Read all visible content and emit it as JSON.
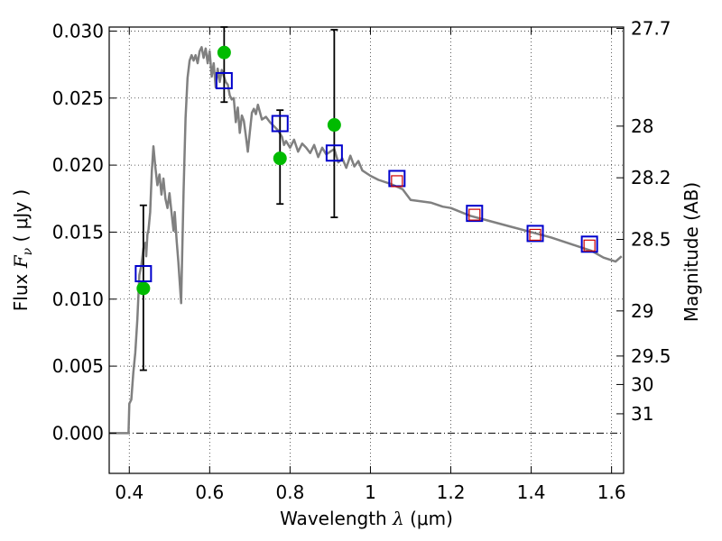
{
  "chart_data": {
    "type": "scatter",
    "xlabel": "Wavelength  λ (μm)",
    "ylabel": "Flux  F_ν  ( μJy )",
    "ylabel_parts": {
      "prefix": "Flux  ",
      "symbol": "F",
      "subscript": "ν",
      "units": "  ( μJy )"
    },
    "xlabel_parts": {
      "prefix": "Wavelength  ",
      "symbol": "λ",
      "units": " (μm)"
    },
    "right_ylabel": "Magnitude (AB)",
    "xlim": [
      0.35,
      1.63
    ],
    "ylim": [
      -0.003,
      0.0303
    ],
    "grid": true,
    "x_ticks": [
      {
        "value": 0.4,
        "label": "0.4"
      },
      {
        "value": 0.6,
        "label": "0.6"
      },
      {
        "value": 0.8,
        "label": "0.8"
      },
      {
        "value": 1.0,
        "label": "1"
      },
      {
        "value": 1.2,
        "label": "1.2"
      },
      {
        "value": 1.4,
        "label": "1.4"
      },
      {
        "value": 1.6,
        "label": "1.6"
      }
    ],
    "y_ticks": [
      {
        "value": 0.0,
        "label": "0.000"
      },
      {
        "value": 0.005,
        "label": "0.005"
      },
      {
        "value": 0.01,
        "label": "0.010"
      },
      {
        "value": 0.015,
        "label": "0.015"
      },
      {
        "value": 0.02,
        "label": "0.020"
      },
      {
        "value": 0.025,
        "label": "0.025"
      },
      {
        "value": 0.03,
        "label": "0.030"
      }
    ],
    "right_ticks": [
      {
        "mag": 27.7,
        "label": "27.7"
      },
      {
        "mag": 28.0,
        "label": "28"
      },
      {
        "mag": 28.2,
        "label": "28.2"
      },
      {
        "mag": 28.5,
        "label": "28.5"
      },
      {
        "mag": 29.0,
        "label": "29"
      },
      {
        "mag": 29.5,
        "label": "29.5"
      },
      {
        "mag": 30.0,
        "label": "30"
      },
      {
        "mag": 31.0,
        "label": "31"
      }
    ],
    "model_sed": {
      "color": "#808080",
      "points": [
        [
          0.35,
          0.0
        ],
        [
          0.39,
          0.0
        ],
        [
          0.398,
          0.0
        ],
        [
          0.4,
          0.0022
        ],
        [
          0.405,
          0.0025
        ],
        [
          0.41,
          0.0045
        ],
        [
          0.415,
          0.006
        ],
        [
          0.42,
          0.0085
        ],
        [
          0.425,
          0.0118
        ],
        [
          0.43,
          0.0125
        ],
        [
          0.435,
          0.0138
        ],
        [
          0.44,
          0.0142
        ],
        [
          0.442,
          0.0132
        ],
        [
          0.445,
          0.0148
        ],
        [
          0.448,
          0.0152
        ],
        [
          0.452,
          0.0165
        ],
        [
          0.456,
          0.0195
        ],
        [
          0.46,
          0.0214
        ],
        [
          0.465,
          0.0198
        ],
        [
          0.47,
          0.0185
        ],
        [
          0.475,
          0.0193
        ],
        [
          0.48,
          0.0178
        ],
        [
          0.485,
          0.019
        ],
        [
          0.49,
          0.0175
        ],
        [
          0.495,
          0.0168
        ],
        [
          0.5,
          0.0179
        ],
        [
          0.505,
          0.0165
        ],
        [
          0.51,
          0.0151
        ],
        [
          0.513,
          0.0165
        ],
        [
          0.518,
          0.0143
        ],
        [
          0.522,
          0.0128
        ],
        [
          0.526,
          0.011
        ],
        [
          0.529,
          0.0097
        ],
        [
          0.531,
          0.0125
        ],
        [
          0.535,
          0.018
        ],
        [
          0.54,
          0.0235
        ],
        [
          0.545,
          0.0265
        ],
        [
          0.55,
          0.0278
        ],
        [
          0.555,
          0.0282
        ],
        [
          0.56,
          0.0278
        ],
        [
          0.565,
          0.0282
        ],
        [
          0.57,
          0.0276
        ],
        [
          0.575,
          0.0285
        ],
        [
          0.58,
          0.0288
        ],
        [
          0.585,
          0.028
        ],
        [
          0.59,
          0.0287
        ],
        [
          0.595,
          0.0276
        ],
        [
          0.6,
          0.0285
        ],
        [
          0.605,
          0.0266
        ],
        [
          0.61,
          0.0276
        ],
        [
          0.615,
          0.0258
        ],
        [
          0.62,
          0.0272
        ],
        [
          0.625,
          0.0262
        ],
        [
          0.63,
          0.0271
        ],
        [
          0.64,
          0.0262
        ],
        [
          0.645,
          0.026
        ],
        [
          0.65,
          0.0252
        ],
        [
          0.655,
          0.0249
        ],
        [
          0.66,
          0.025
        ],
        [
          0.665,
          0.0232
        ],
        [
          0.67,
          0.0243
        ],
        [
          0.675,
          0.0224
        ],
        [
          0.68,
          0.0237
        ],
        [
          0.685,
          0.0233
        ],
        [
          0.69,
          0.0222
        ],
        [
          0.695,
          0.021
        ],
        [
          0.7,
          0.0225
        ],
        [
          0.705,
          0.0239
        ],
        [
          0.71,
          0.0242
        ],
        [
          0.715,
          0.0238
        ],
        [
          0.72,
          0.0245
        ],
        [
          0.73,
          0.0234
        ],
        [
          0.74,
          0.0236
        ],
        [
          0.75,
          0.0232
        ],
        [
          0.76,
          0.0229
        ],
        [
          0.77,
          0.0226
        ],
        [
          0.78,
          0.0221
        ],
        [
          0.785,
          0.0215
        ],
        [
          0.79,
          0.0218
        ],
        [
          0.8,
          0.0213
        ],
        [
          0.81,
          0.0219
        ],
        [
          0.82,
          0.021
        ],
        [
          0.83,
          0.0216
        ],
        [
          0.84,
          0.0213
        ],
        [
          0.85,
          0.0209
        ],
        [
          0.86,
          0.0215
        ],
        [
          0.87,
          0.0206
        ],
        [
          0.88,
          0.0213
        ],
        [
          0.89,
          0.0208
        ],
        [
          0.9,
          0.021
        ],
        [
          0.91,
          0.0212
        ],
        [
          0.92,
          0.0202
        ],
        [
          0.93,
          0.0205
        ],
        [
          0.94,
          0.0198
        ],
        [
          0.95,
          0.0207
        ],
        [
          0.96,
          0.0199
        ],
        [
          0.97,
          0.0203
        ],
        [
          0.98,
          0.0196
        ],
        [
          1.0,
          0.0192
        ],
        [
          1.02,
          0.0189
        ],
        [
          1.05,
          0.0186
        ],
        [
          1.08,
          0.0182
        ],
        [
          1.1,
          0.0174
        ],
        [
          1.15,
          0.0172
        ],
        [
          1.18,
          0.0169
        ],
        [
          1.2,
          0.0168
        ],
        [
          1.25,
          0.0162
        ],
        [
          1.3,
          0.0158
        ],
        [
          1.35,
          0.0154
        ],
        [
          1.4,
          0.015
        ],
        [
          1.45,
          0.0146
        ],
        [
          1.5,
          0.0141
        ],
        [
          1.55,
          0.0136
        ],
        [
          1.58,
          0.0131
        ],
        [
          1.61,
          0.0128
        ],
        [
          1.625,
          0.0132
        ]
      ]
    },
    "series": [
      {
        "marker": "circle",
        "color": "#00bb00",
        "points": [
          {
            "x": 0.435,
            "y": 0.0108
          },
          {
            "x": 0.636,
            "y": 0.0284
          },
          {
            "x": 0.775,
            "y": 0.0205
          },
          {
            "x": 0.91,
            "y": 0.023
          }
        ]
      },
      {
        "marker": "square",
        "color": "#0000cc",
        "points": [
          {
            "x": 0.435,
            "y": 0.0119
          },
          {
            "x": 0.636,
            "y": 0.0263
          },
          {
            "x": 0.775,
            "y": 0.0231
          },
          {
            "x": 0.91,
            "y": 0.0209
          },
          {
            "x": 1.066,
            "y": 0.019
          },
          {
            "x": 1.259,
            "y": 0.0164
          },
          {
            "x": 1.41,
            "y": 0.0149
          },
          {
            "x": 1.545,
            "y": 0.0141
          }
        ]
      },
      {
        "marker": "square",
        "color": "#cc0000",
        "points": [
          {
            "x": 1.066,
            "y": 0.0188
          },
          {
            "x": 1.259,
            "y": 0.0163
          },
          {
            "x": 1.41,
            "y": 0.0148
          },
          {
            "x": 1.545,
            "y": 0.014
          }
        ]
      }
    ],
    "error_bars": {
      "color": "#000000",
      "items": [
        {
          "x": 0.435,
          "low": 0.0047,
          "high": 0.017
        },
        {
          "x": 0.636,
          "low": 0.0247,
          "high": 0.0303
        },
        {
          "x": 0.775,
          "low": 0.0171,
          "high": 0.0241
        },
        {
          "x": 0.91,
          "low": 0.0161,
          "high": 0.0301
        }
      ]
    }
  }
}
